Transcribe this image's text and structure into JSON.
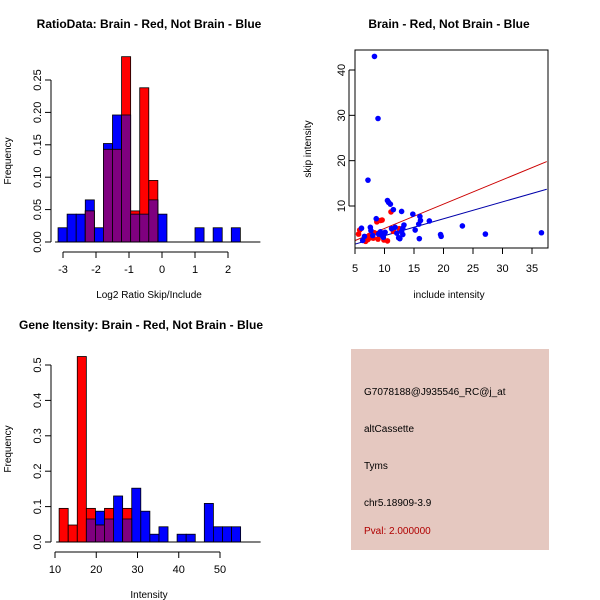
{
  "chart_data": [
    {
      "type": "bar",
      "id": "ratio-hist",
      "title": "RatioData: Brain - Red, Not Brain - Blue",
      "xlabel": "Log2 Ratio Skip/Include",
      "ylabel": "Frequency",
      "xlim": [
        -3.3,
        2.6
      ],
      "ylim": [
        0,
        0.29
      ],
      "xticks": [
        -3,
        -2,
        -1,
        0,
        1,
        2
      ],
      "xtick_labels": [
        "-3",
        "-2",
        "-1",
        "0",
        "1",
        "2"
      ],
      "yticks": [
        0,
        0.05,
        0.1,
        0.15,
        0.2,
        0.25
      ],
      "ytick_labels": [
        "0.00",
        "0.05",
        "0.10",
        "0.15",
        "0.20",
        "0.25"
      ],
      "bin_width": 0.275,
      "series": [
        {
          "name": "Not Brain",
          "color": "#0000ff",
          "bins": [
            [
              -3.15,
              0.022
            ],
            [
              -2.875,
              0.043
            ],
            [
              -2.6,
              0.043
            ],
            [
              -2.325,
              0.065
            ],
            [
              -2.05,
              0.022
            ],
            [
              -1.775,
              0.152
            ],
            [
              -1.5,
              0.196
            ],
            [
              -1.225,
              0.196
            ],
            [
              -0.95,
              0.043
            ],
            [
              -0.675,
              0.043
            ],
            [
              -0.4,
              0.065
            ],
            [
              -0.125,
              0.043
            ],
            [
              1.0,
              0.022
            ],
            [
              1.55,
              0.022
            ],
            [
              2.1,
              0.022
            ]
          ]
        },
        {
          "name": "Brain",
          "color": "#ff0000",
          "bins": [
            [
              -2.325,
              0.048
            ],
            [
              -1.775,
              0.143
            ],
            [
              -1.5,
              0.143
            ],
            [
              -1.225,
              0.286
            ],
            [
              -0.95,
              0.048
            ],
            [
              -0.675,
              0.238
            ],
            [
              -0.4,
              0.095
            ]
          ]
        }
      ],
      "overlap_color": "#7f007f"
    },
    {
      "type": "scatter",
      "id": "intensity-scatter",
      "title": "Brain - Red, Not Brain - Blue",
      "xlabel": "include intensity",
      "ylabel": "skip intensity",
      "xlim": [
        4.5,
        37.5
      ],
      "ylim": [
        1,
        45
      ],
      "xticks": [
        5,
        10,
        15,
        20,
        25,
        30,
        35
      ],
      "xtick_labels": [
        "5",
        "10",
        "15",
        "20",
        "25",
        "30",
        "35"
      ],
      "yticks": [
        10,
        20,
        30,
        40
      ],
      "ytick_labels": [
        "10",
        "20",
        "30",
        "40"
      ],
      "series": [
        {
          "name": "Brain",
          "color": "#ff0000",
          "points": [
            [
              5.6,
              3.8
            ],
            [
              5.8,
              4.7
            ],
            [
              6.8,
              2.2
            ],
            [
              7.0,
              3.2
            ],
            [
              7.2,
              2.6
            ],
            [
              7.4,
              3.5
            ],
            [
              7.6,
              3.0
            ],
            [
              7.9,
              3.6
            ],
            [
              8.1,
              2.9
            ],
            [
              8.3,
              4.1
            ],
            [
              8.7,
              6.5
            ],
            [
              8.9,
              2.7
            ],
            [
              9.3,
              6.8
            ],
            [
              9.6,
              6.9
            ],
            [
              9.9,
              2.5
            ],
            [
              10.5,
              2.3
            ],
            [
              11.1,
              8.7
            ],
            [
              11.5,
              4.4
            ],
            [
              12.5,
              5.0
            ]
          ]
        },
        {
          "name": "Not Brain",
          "color": "#0000ff",
          "points": [
            [
              6.1,
              5.1
            ],
            [
              6.3,
              2.4
            ],
            [
              6.6,
              3.3
            ],
            [
              7.2,
              15.7
            ],
            [
              7.6,
              5.3
            ],
            [
              7.7,
              4.6
            ],
            [
              8.0,
              3.5
            ],
            [
              8.3,
              43.0
            ],
            [
              8.6,
              7.2
            ],
            [
              8.9,
              29.3
            ],
            [
              9.0,
              3.8
            ],
            [
              9.3,
              4.3
            ],
            [
              9.6,
              3.5
            ],
            [
              9.8,
              3.1
            ],
            [
              10.1,
              4.2
            ],
            [
              10.5,
              11.2
            ],
            [
              10.7,
              10.8
            ],
            [
              11.0,
              10.4
            ],
            [
              11.2,
              5.0
            ],
            [
              11.5,
              9.2
            ],
            [
              11.8,
              5.3
            ],
            [
              12.1,
              4.0
            ],
            [
              12.4,
              3.0
            ],
            [
              12.6,
              2.8
            ],
            [
              12.9,
              4.4
            ],
            [
              13.1,
              3.7
            ],
            [
              13.3,
              5.8
            ],
            [
              12.9,
              8.8
            ],
            [
              13.1,
              5.1
            ],
            [
              14.8,
              8.2
            ],
            [
              15.2,
              4.7
            ],
            [
              15.8,
              6.0
            ],
            [
              15.9,
              2.8
            ],
            [
              16.0,
              7.7
            ],
            [
              16.1,
              6.8
            ],
            [
              17.6,
              6.7
            ],
            [
              19.5,
              3.7
            ],
            [
              19.6,
              3.3
            ],
            [
              23.2,
              5.6
            ],
            [
              27.1,
              3.8
            ],
            [
              36.6,
              4.1
            ]
          ]
        }
      ],
      "lines": [
        {
          "name": "Brain fit",
          "color": "#cc0000",
          "from": [
            4.5,
            2.1
          ],
          "to": [
            37.5,
            19.8
          ]
        },
        {
          "name": "Not Brain fit",
          "color": "#0000aa",
          "from": [
            4.5,
            1.4
          ],
          "to": [
            37.5,
            13.7
          ]
        }
      ]
    },
    {
      "type": "bar",
      "id": "gene-intensity-hist",
      "title": "Gene Itensity: Brain - Red, Not Brain - Blue",
      "xlabel": "Intensity",
      "ylabel": "Frequency",
      "xlim": [
        9,
        57
      ],
      "ylim": [
        0,
        0.53
      ],
      "xticks": [
        10,
        20,
        30,
        40,
        50
      ],
      "xtick_labels": [
        "10",
        "20",
        "30",
        "40",
        "50"
      ],
      "yticks": [
        0,
        0.1,
        0.2,
        0.3,
        0.4,
        0.5
      ],
      "ytick_labels": [
        "0.0",
        "0.1",
        "0.2",
        "0.3",
        "0.4",
        "0.5"
      ],
      "bin_width": 2.2,
      "series": [
        {
          "name": "Not Brain",
          "color": "#0000ff",
          "bins": [
            [
              17.6,
              0.065
            ],
            [
              19.8,
              0.087
            ],
            [
              22.0,
              0.065
            ],
            [
              24.2,
              0.13
            ],
            [
              26.4,
              0.065
            ],
            [
              28.6,
              0.152
            ],
            [
              30.8,
              0.087
            ],
            [
              33.0,
              0.022
            ],
            [
              35.2,
              0.043
            ],
            [
              39.6,
              0.022
            ],
            [
              41.8,
              0.022
            ],
            [
              46.2,
              0.109
            ],
            [
              48.4,
              0.043
            ],
            [
              50.6,
              0.043
            ],
            [
              52.8,
              0.043
            ]
          ]
        },
        {
          "name": "Brain",
          "color": "#ff0000",
          "bins": [
            [
              11.0,
              0.095
            ],
            [
              13.2,
              0.048
            ],
            [
              15.4,
              0.524
            ],
            [
              17.6,
              0.095
            ],
            [
              19.8,
              0.048
            ],
            [
              22.0,
              0.095
            ],
            [
              26.4,
              0.095
            ]
          ]
        }
      ],
      "overlap_color": "#7f007f"
    }
  ],
  "info_panel": {
    "probe_id": "G7078188@J935546_RC@j_at",
    "event_type": "altCassette",
    "gene": "Tyms",
    "location": "chr5.18909-3.9",
    "pval": "Pval: 2.000000",
    "background": "#e5c8c0",
    "pval_color": "#b00000"
  }
}
